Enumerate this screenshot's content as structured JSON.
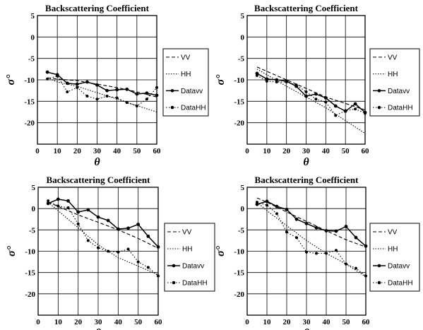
{
  "chart_data": [
    {
      "type": "line",
      "title": "Backscattering Coefficient",
      "xlabel": "θ",
      "ylabel": "σ°",
      "xlim": [
        0,
        60
      ],
      "ylim": [
        -25,
        5
      ],
      "xticks": [
        "0",
        "10",
        "20",
        "30",
        "40",
        "50",
        "60"
      ],
      "yticks": [
        "5",
        "0",
        "-5",
        "-10",
        "-15",
        "-20"
      ],
      "grid": true,
      "legend_position": "right",
      "series": [
        {
          "name": "VV",
          "style": "dashed",
          "x": [
            5,
            10,
            20,
            30,
            40,
            50,
            60
          ],
          "y": [
            -9.5,
            -9.8,
            -10.2,
            -11,
            -11.8,
            -12.8,
            -14
          ]
        },
        {
          "name": "HH",
          "style": "dotted",
          "x": [
            5,
            10,
            20,
            30,
            40,
            50,
            60
          ],
          "y": [
            -9.5,
            -10.5,
            -11.5,
            -13,
            -14.5,
            -16,
            -17.5
          ]
        },
        {
          "name": "Datavv",
          "style": "solid-marker",
          "x": [
            5,
            10,
            15,
            20,
            25,
            30,
            35,
            40,
            45,
            50,
            55,
            60
          ],
          "y": [
            -8.2,
            -8.8,
            -10.8,
            -11,
            -10.5,
            -11.2,
            -12.5,
            -12.3,
            -12.2,
            -13.3,
            -13.1,
            -13.6
          ]
        },
        {
          "name": "DataHH",
          "style": "dotted-marker",
          "x": [
            5,
            10,
            15,
            20,
            25,
            30,
            35,
            40,
            45,
            50,
            55,
            60
          ],
          "y": [
            -9.8,
            -9.1,
            -12.8,
            -11.8,
            -13.8,
            -14.5,
            -13.8,
            -14.2,
            -15.3,
            -16.1,
            -14.5,
            -11.8
          ]
        }
      ]
    },
    {
      "type": "line",
      "title": "Backscattering Coefficient",
      "xlabel": "θ",
      "ylabel": "σ°",
      "xlim": [
        0,
        60
      ],
      "ylim": [
        -25,
        5
      ],
      "xticks": [
        "0",
        "10",
        "20",
        "30",
        "40",
        "50",
        "60"
      ],
      "yticks": [
        "5",
        "0",
        "-5",
        "-10",
        "-15",
        "-20"
      ],
      "grid": true,
      "legend_position": "right",
      "series": [
        {
          "name": "VV",
          "style": "dashed",
          "x": [
            5,
            10,
            20,
            30,
            40,
            50,
            60
          ],
          "y": [
            -7,
            -8,
            -10,
            -12,
            -14,
            -15.5,
            -17
          ]
        },
        {
          "name": "HH",
          "style": "dotted",
          "x": [
            5,
            10,
            20,
            30,
            40,
            50,
            60
          ],
          "y": [
            -7.5,
            -8.8,
            -11.5,
            -14,
            -16.5,
            -19.5,
            -22.5
          ]
        },
        {
          "name": "Datavv",
          "style": "solid-marker",
          "x": [
            5,
            10,
            15,
            20,
            25,
            30,
            35,
            40,
            45,
            50,
            55,
            60
          ],
          "y": [
            -8.5,
            -9.8,
            -10,
            -10.3,
            -11.5,
            -13.8,
            -13.3,
            -14.2,
            -16.1,
            -17.3,
            -15.6,
            -17.6
          ]
        },
        {
          "name": "DataHH",
          "style": "dotted-marker",
          "x": [
            5,
            10,
            15,
            20,
            25,
            30,
            35,
            40,
            45,
            50,
            55,
            60
          ],
          "y": [
            -9,
            -10.3,
            -10.5,
            -10.5,
            -11.2,
            -12.8,
            -14.5,
            -15.2,
            -18.3,
            -17.2,
            -16.8,
            -17.8
          ]
        }
      ]
    },
    {
      "type": "line",
      "title": "Backscattering Coefficient",
      "xlabel": "θ",
      "ylabel": "σ°",
      "xlim": [
        0,
        60
      ],
      "ylim": [
        -25,
        5
      ],
      "xticks": [
        "0",
        "10",
        "20",
        "30",
        "40",
        "50",
        "60"
      ],
      "yticks": [
        "5",
        "0",
        "-5",
        "-10",
        "-15",
        "-20"
      ],
      "grid": true,
      "legend_position": "right",
      "series": [
        {
          "name": "VV",
          "style": "dashed",
          "x": [
            5,
            10,
            20,
            30,
            40,
            50,
            60
          ],
          "y": [
            1.5,
            0.5,
            -1.5,
            -3.2,
            -5,
            -7,
            -9.3
          ]
        },
        {
          "name": "HH",
          "style": "dotted",
          "x": [
            5,
            10,
            20,
            30,
            40,
            50,
            60
          ],
          "y": [
            1.5,
            -0.5,
            -4.5,
            -8.5,
            -11.5,
            -13.5,
            -15.5
          ]
        },
        {
          "name": "Datavv",
          "style": "solid-marker",
          "x": [
            5,
            10,
            15,
            20,
            25,
            30,
            35,
            40,
            45,
            50,
            55,
            60
          ],
          "y": [
            1.2,
            2.2,
            1.8,
            -0.8,
            -0.3,
            -2,
            -2.8,
            -4.8,
            -4.6,
            -3.7,
            -6.5,
            -9
          ]
        },
        {
          "name": "DataHH",
          "style": "dotted-marker",
          "x": [
            5,
            10,
            15,
            20,
            25,
            30,
            35,
            40,
            45,
            50,
            55,
            60
          ],
          "y": [
            1.8,
            0.6,
            0.2,
            -3.6,
            -7.5,
            -9.2,
            -10,
            -10.2,
            -9.5,
            -12.5,
            -13.8,
            -15.8
          ]
        }
      ]
    },
    {
      "type": "line",
      "title": "Backscattering Coefficient",
      "xlabel": "θ",
      "ylabel": "σ°",
      "xlim": [
        0,
        60
      ],
      "ylim": [
        -25,
        5
      ],
      "xticks": [
        "0",
        "10",
        "20",
        "30",
        "40",
        "50",
        "60"
      ],
      "yticks": [
        "5",
        "0",
        "-5",
        "-10",
        "-15",
        "-20"
      ],
      "grid": true,
      "legend_position": "right",
      "series": [
        {
          "name": "VV",
          "style": "dashed",
          "x": [
            5,
            10,
            20,
            30,
            40,
            50,
            60
          ],
          "y": [
            2.5,
            1.5,
            -0.8,
            -3,
            -5.2,
            -7.3,
            -9
          ]
        },
        {
          "name": "HH",
          "style": "dotted",
          "x": [
            5,
            10,
            20,
            30,
            40,
            50,
            60
          ],
          "y": [
            1.5,
            -0.5,
            -4,
            -7.5,
            -10.5,
            -13,
            -16
          ]
        },
        {
          "name": "Datavv",
          "style": "solid-marker",
          "x": [
            5,
            10,
            15,
            20,
            25,
            30,
            35,
            40,
            45,
            50,
            55,
            60
          ],
          "y": [
            1,
            1.7,
            0.5,
            -0.2,
            -2.5,
            -3.5,
            -4.5,
            -5.2,
            -5.3,
            -4.2,
            -6.8,
            -8.8
          ]
        },
        {
          "name": "DataHH",
          "style": "dotted-marker",
          "x": [
            5,
            10,
            15,
            20,
            25,
            30,
            35,
            40,
            45,
            50,
            55,
            60
          ],
          "y": [
            1.5,
            0.8,
            -1.2,
            -5.5,
            -6.8,
            -10.2,
            -10.5,
            -10.5,
            -9.8,
            -13,
            -14,
            -15.8
          ]
        }
      ]
    }
  ]
}
